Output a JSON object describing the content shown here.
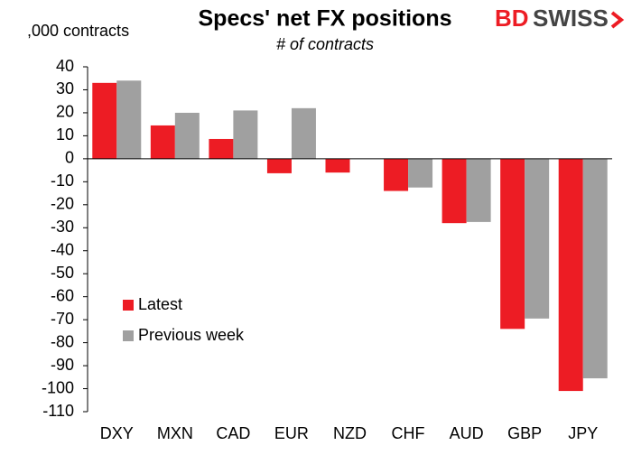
{
  "chart_data": {
    "type": "bar",
    "title": "Specs' net FX positions",
    "subtitle": "# of contracts",
    "y_label": ",000 contracts",
    "logo": [
      "BD",
      "SWISS"
    ],
    "categories": [
      "DXY",
      "MXN",
      "CAD",
      "EUR",
      "NZD",
      "CHF",
      "AUD",
      "GBP",
      "JPY"
    ],
    "series": [
      {
        "name": "Latest",
        "color": "#ed1c24",
        "values": [
          33,
          14.5,
          8.6,
          -6.3,
          -6,
          -14,
          -28,
          -74,
          -101
        ]
      },
      {
        "name": "Previous week",
        "color": "#a0a0a0",
        "values": [
          34,
          20,
          21,
          22,
          null,
          -12.5,
          -27.5,
          -69.5,
          -95.5
        ]
      }
    ],
    "ylim": [
      -110,
      40
    ],
    "yticks": [
      40,
      30,
      20,
      10,
      0,
      -10,
      -20,
      -30,
      -40,
      -50,
      -60,
      -70,
      -80,
      -90,
      -100,
      -110
    ],
    "grid": false
  }
}
